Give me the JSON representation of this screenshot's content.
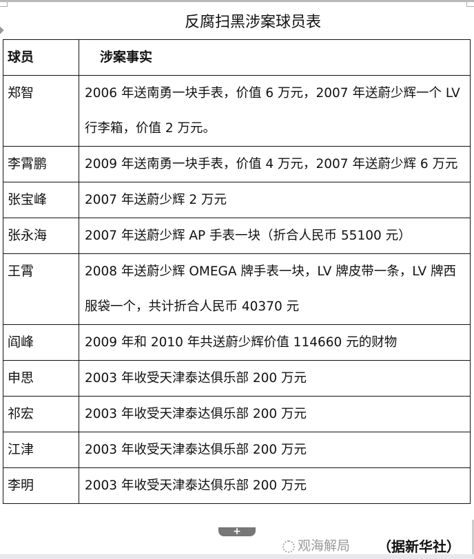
{
  "title": "反腐扫黑涉案球员表",
  "table": {
    "headers": [
      "球员",
      "涉案事实"
    ],
    "rows": [
      {
        "player": "郑智",
        "fact": "2006 年送南勇一块手表，价值 6 万元，2007 年送蔚少辉一个 LV 行李箱，价值 2 万元。"
      },
      {
        "player": "李霄鹏",
        "fact": "2009 年送南勇一块手表，价值 4 万元，2007 年送蔚少辉 6 万元"
      },
      {
        "player": "张宝峰",
        "fact": "2007 年送蔚少辉 2 万元"
      },
      {
        "player": "张永海",
        "fact": "2007 年送蔚少辉 AP 手表一块（折合人民币 55100 元）"
      },
      {
        "player": "王霄",
        "fact": "2008 年送蔚少辉 OMEGA 牌手表一块，LV 牌皮带一条，LV 牌西服袋一个，共计折合人民币 40370 元"
      },
      {
        "player": "阎峰",
        "fact": "2009 年和 2010 年共送蔚少辉价值 114660 元的财物"
      },
      {
        "player": "申思",
        "fact": "2003 年收受天津泰达俱乐部 200 万元"
      },
      {
        "player": "祁宏",
        "fact": "2003 年收受天津泰达俱乐部 200 万元"
      },
      {
        "player": "江津",
        "fact": "2003 年收受天津泰达俱乐部 200 万元"
      },
      {
        "player": "李明",
        "fact": "2003 年收受天津泰达俱乐部 200 万元"
      }
    ]
  },
  "add_row_label": "+",
  "source": "（据新华社）",
  "watermark": "观海解局"
}
